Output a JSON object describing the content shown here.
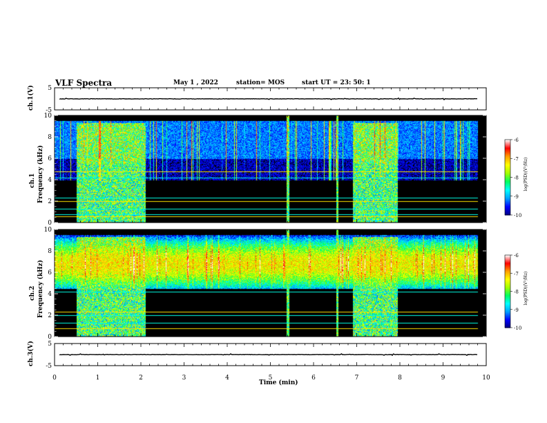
{
  "header": {
    "title": "VLF Spectra",
    "date": "May 1 , 2022",
    "station": "station= MOS",
    "start_ut": "start UT =  23: 50: 1"
  },
  "x_axis_label": "Time (min)",
  "panels": [
    {
      "id": "ch1-waveform",
      "ylabel": "ch.1(V)",
      "ylim": [
        -5,
        5
      ],
      "ticks": [
        "5",
        "-5"
      ]
    },
    {
      "id": "ch1-spectrogram",
      "ylabel": "Frequency (kHz)",
      "ylabel2": "ch.1",
      "ylim": [
        0,
        10
      ],
      "ticks": [
        "0",
        "2",
        "4",
        "6",
        "8",
        "10"
      ]
    },
    {
      "id": "ch2-spectrogram",
      "ylabel": "Frequency (kHz)",
      "ylabel2": "ch.2",
      "ylim": [
        0,
        10
      ],
      "ticks": [
        "0",
        "2",
        "4",
        "6",
        "8",
        "10"
      ]
    },
    {
      "id": "ch3-waveform",
      "ylabel": "ch.3(V)",
      "ylim": [
        -5,
        5
      ],
      "ticks": [
        "5",
        "-5"
      ]
    }
  ],
  "colorbar": {
    "label": "log(PSD)(V²/Hz)",
    "range": [
      -10,
      -6
    ],
    "ticks": [
      "-6",
      "-7",
      "-8",
      "-9",
      "-10"
    ],
    "colors": [
      "#000080",
      "#0000ff",
      "#00a0ff",
      "#00ffff",
      "#00ff60",
      "#a0ff00",
      "#ffff00",
      "#ffa000",
      "#ff0000",
      "#ffffff"
    ]
  },
  "chart_data": {
    "type": "heatmap",
    "title": "VLF Spectra",
    "xlabel": "Time (min)",
    "xlim": [
      0,
      10
    ],
    "x_ticks": [
      "0",
      "1",
      "2",
      "3",
      "4",
      "5",
      "6",
      "7",
      "8",
      "9",
      "10"
    ],
    "data_end_min": 9.8,
    "channels": [
      {
        "name": "ch.1",
        "ylabel": "Frequency (kHz)",
        "ylim": [
          0,
          10
        ],
        "active_band_khz": [
          4,
          9.5
        ],
        "band_peak_log_psd": -8.5,
        "constant_lines_khz": [
          0.6,
          0.8,
          1.3,
          2.0,
          2.3,
          4.2,
          4.8
        ],
        "broadband_intervals_min": [
          [
            0.5,
            2.1
          ],
          [
            6.9,
            7.95
          ]
        ],
        "burst_times_min": [
          5.4,
          6.55
        ],
        "broadband_peak_log_psd": -7,
        "background_log_psd": -10
      },
      {
        "name": "ch.2",
        "ylabel": "Frequency (kHz)",
        "ylim": [
          0,
          10
        ],
        "active_band_khz": [
          4.5,
          9.5
        ],
        "band_center_khz": 6.8,
        "band_peak_log_psd": -7,
        "constant_lines_khz": [
          0.8,
          1.3,
          2.0,
          2.3,
          4.2
        ],
        "broadband_intervals_min": [
          [
            0.5,
            2.1
          ],
          [
            6.9,
            7.95
          ]
        ],
        "burst_times_min": [
          5.4,
          6.55
        ],
        "broadband_peak_log_psd": -7,
        "background_log_psd": -10
      }
    ],
    "waveforms": [
      {
        "name": "ch.1(V)",
        "ylim": [
          -5,
          5
        ],
        "baseline_v": 0
      },
      {
        "name": "ch.3(V)",
        "ylim": [
          -5,
          5
        ],
        "baseline_v": 0
      }
    ]
  }
}
